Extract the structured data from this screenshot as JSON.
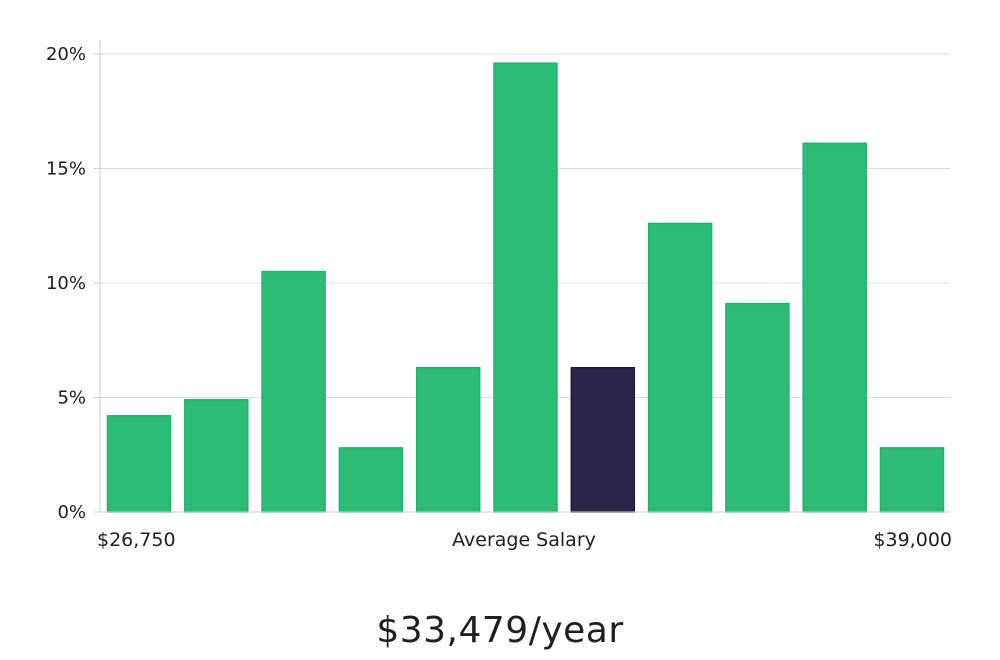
{
  "chart_data": {
    "type": "bar",
    "values": [
      4.2,
      4.9,
      10.5,
      2.8,
      6.3,
      19.6,
      6.3,
      12.6,
      9.1,
      16.1,
      2.8
    ],
    "highlight_index": 6,
    "ylim": [
      0,
      20
    ],
    "yticks": [
      0,
      5,
      10,
      15,
      20
    ],
    "ytick_labels": [
      "0%",
      "5%",
      "10%",
      "15%",
      "20%"
    ],
    "x_min_label": "$26,750",
    "x_mid_label": "Average Salary",
    "x_max_label": "$39,000",
    "grid": true,
    "colors": {
      "bar": "#2bbd76",
      "bar_edge": "#22b36b",
      "highlight": "#29274a",
      "grid": "#dcdcdc",
      "axis": "#cfcfcf"
    }
  },
  "summary": {
    "salary_text": "$33,479/year"
  }
}
